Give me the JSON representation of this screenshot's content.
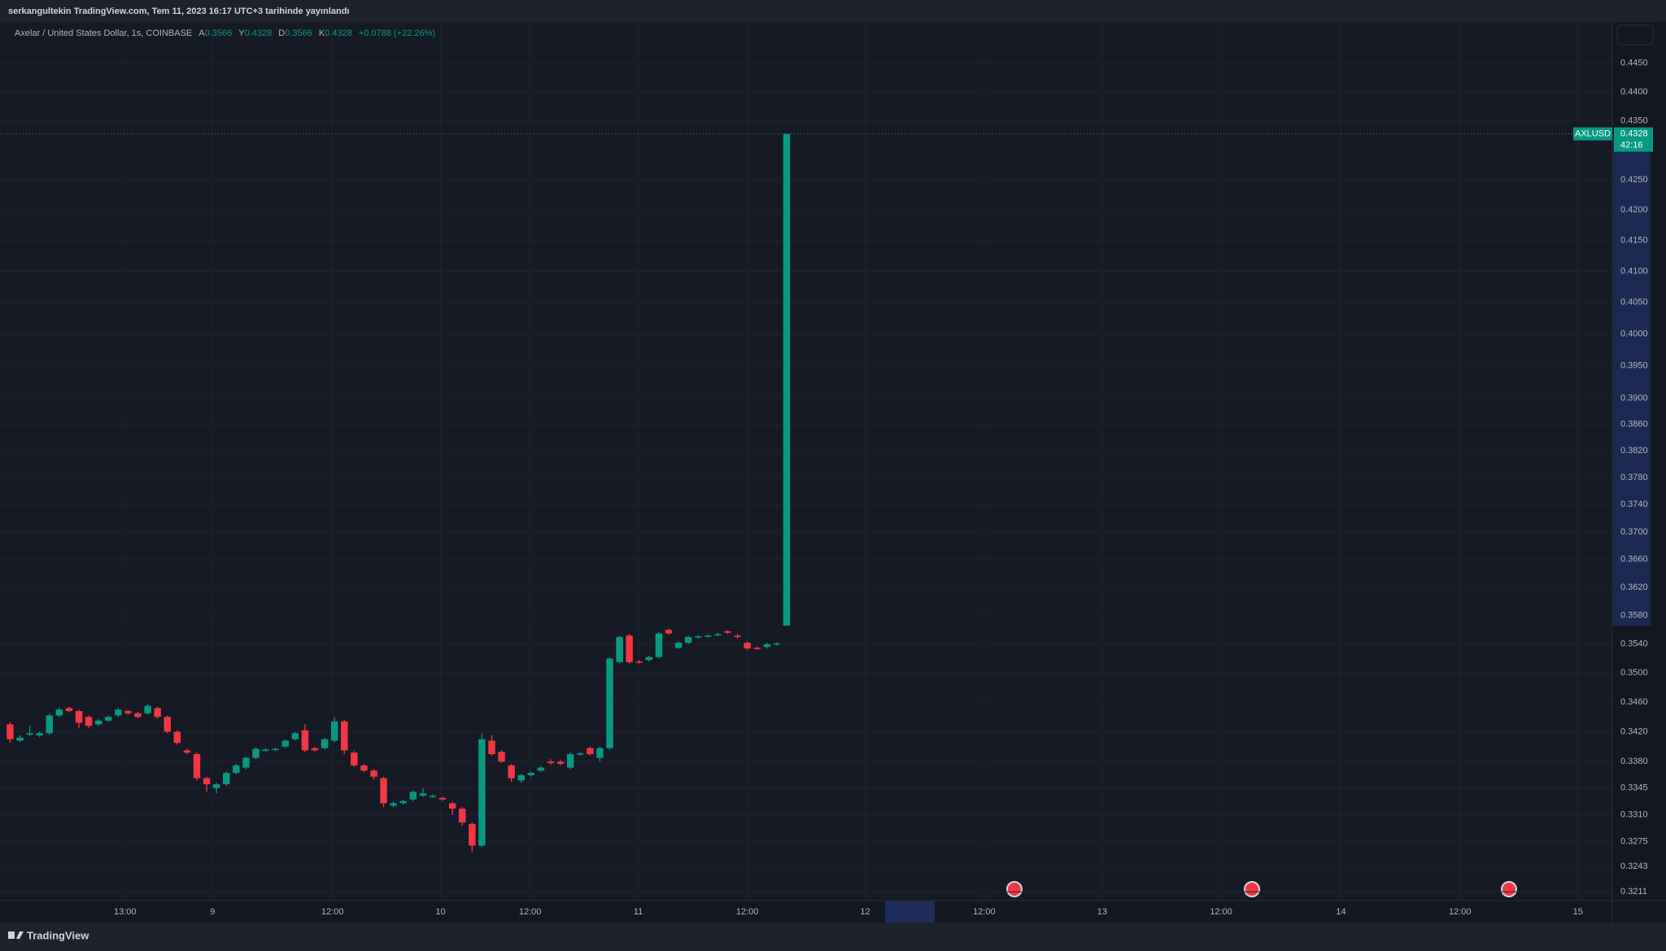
{
  "header": {
    "published": "serkangultekin TradingView.com, Tem 11, 2023 16:17 UTC+3 tarihinde yayınlandı"
  },
  "footer": {
    "brand": "TradingView"
  },
  "chart_data": {
    "type": "candlestick",
    "title": "Axelar / United States Dollar, 1s, COINBASE",
    "ohlc_labels": [
      "A",
      "Y",
      "D",
      "K"
    ],
    "change_label": "+0.0788 (+22.26%)",
    "countdown": "42:16",
    "log_scale": true,
    "grid": true,
    "xlim": [
      -0.2,
      163
    ],
    "xticks": [
      {
        "value": 11.7,
        "label": "13:00"
      },
      {
        "value": 20.6,
        "label": "9"
      },
      {
        "value": 32.8,
        "label": "12:00"
      },
      {
        "value": 43.8,
        "label": "10"
      },
      {
        "value": 52.9,
        "label": "12:00"
      },
      {
        "value": 63.9,
        "label": "11"
      },
      {
        "value": 75.0,
        "label": "12:00"
      },
      {
        "value": 87.0,
        "label": "12"
      },
      {
        "value": 99.1,
        "label": "12:00"
      },
      {
        "value": 111.1,
        "label": "13"
      },
      {
        "value": 123.2,
        "label": "12:00"
      },
      {
        "value": 135.4,
        "label": "14"
      },
      {
        "value": 147.5,
        "label": "12:00"
      },
      {
        "value": 159.5,
        "label": "15"
      }
    ],
    "ylim": [
      0.32,
      0.4523
    ],
    "yticks": [
      {
        "value": 0.445,
        "label": "0.4450"
      },
      {
        "value": 0.44,
        "label": "0.4400"
      },
      {
        "value": 0.435,
        "label": "0.4350"
      },
      {
        "value": 0.425,
        "label": "0.4250"
      },
      {
        "value": 0.42,
        "label": "0.4200"
      },
      {
        "value": 0.415,
        "label": "0.4150"
      },
      {
        "value": 0.41,
        "label": "0.4100"
      },
      {
        "value": 0.405,
        "label": "0.4050"
      },
      {
        "value": 0.4,
        "label": "0.4000"
      },
      {
        "value": 0.395,
        "label": "0.3950"
      },
      {
        "value": 0.39,
        "label": "0.3900"
      },
      {
        "value": 0.386,
        "label": "0.3860"
      },
      {
        "value": 0.382,
        "label": "0.3820"
      },
      {
        "value": 0.378,
        "label": "0.3780"
      },
      {
        "value": 0.374,
        "label": "0.3740"
      },
      {
        "value": 0.37,
        "label": "0.3700"
      },
      {
        "value": 0.366,
        "label": "0.3660"
      },
      {
        "value": 0.362,
        "label": "0.3620"
      },
      {
        "value": 0.358,
        "label": "0.3580"
      },
      {
        "value": 0.354,
        "label": "0.3540"
      },
      {
        "value": 0.35,
        "label": "0.3500"
      },
      {
        "value": 0.346,
        "label": "0.3460"
      },
      {
        "value": 0.342,
        "label": "0.3420"
      },
      {
        "value": 0.338,
        "label": "0.3380"
      },
      0.3345,
      {
        "value": 0.331,
        "label": "0.3310"
      },
      0.3275,
      0.3243,
      0.3211
    ],
    "series": [
      {
        "name": "AXLUSD",
        "up_color": "#089981",
        "down_color": "#f23645",
        "open": [
          0.343,
          0.3408,
          0.3416,
          0.3415,
          0.3418,
          0.3442,
          0.3452,
          0.3448,
          0.344,
          0.343,
          0.3435,
          0.3442,
          0.3448,
          0.3445,
          0.3445,
          0.3452,
          0.344,
          0.342,
          0.3395,
          0.339,
          0.3358,
          0.3345,
          0.335,
          0.3365,
          0.3372,
          0.3385,
          0.3395,
          0.3396,
          0.34,
          0.341,
          0.3422,
          0.3398,
          0.3398,
          0.3408,
          0.3434,
          0.3392,
          0.3375,
          0.3368,
          0.3358,
          0.3322,
          0.3325,
          0.333,
          0.3335,
          0.3334,
          0.3332,
          0.3325,
          0.3318,
          0.3298,
          0.327,
          0.3408,
          0.3393,
          0.3375,
          0.3355,
          0.3362,
          0.3368,
          0.338,
          0.338,
          0.3372,
          0.339,
          0.3398,
          0.3385,
          0.3398,
          0.3515,
          0.3552,
          0.3516,
          0.3518,
          0.3522,
          0.356,
          0.3535,
          0.3542,
          0.355,
          0.3551,
          0.3553,
          0.3558,
          0.3552,
          0.3542,
          0.3535,
          0.3536,
          0.354,
          0.3566
        ],
        "high": [
          0.3433,
          0.3415,
          0.3428,
          0.342,
          0.3444,
          0.3453,
          0.3454,
          0.345,
          0.3442,
          0.3437,
          0.3442,
          0.3452,
          0.345,
          0.3447,
          0.3457,
          0.3454,
          0.3442,
          0.3422,
          0.3397,
          0.3392,
          0.336,
          0.3352,
          0.3367,
          0.3377,
          0.3387,
          0.3399,
          0.3398,
          0.3399,
          0.341,
          0.342,
          0.343,
          0.34,
          0.3412,
          0.344,
          0.3436,
          0.3394,
          0.3377,
          0.337,
          0.336,
          0.3327,
          0.333,
          0.3342,
          0.3345,
          0.3337,
          0.3334,
          0.3327,
          0.332,
          0.33,
          0.3418,
          0.3415,
          0.3395,
          0.3377,
          0.3364,
          0.3367,
          0.3374,
          0.3383,
          0.3382,
          0.3392,
          0.3393,
          0.34,
          0.34,
          0.3522,
          0.3552,
          0.3554,
          0.3518,
          0.3524,
          0.3557,
          0.3562,
          0.3544,
          0.3552,
          0.3553,
          0.3554,
          0.3556,
          0.356,
          0.3554,
          0.3544,
          0.3537,
          0.3542,
          0.3543,
          0.4328
        ],
        "low": [
          0.3405,
          0.3406,
          0.3414,
          0.3413,
          0.3416,
          0.344,
          0.3446,
          0.3425,
          0.3425,
          0.3428,
          0.3433,
          0.344,
          0.3443,
          0.3438,
          0.3443,
          0.3438,
          0.3418,
          0.3403,
          0.339,
          0.3355,
          0.334,
          0.3338,
          0.3348,
          0.3363,
          0.337,
          0.3383,
          0.3393,
          0.3394,
          0.3398,
          0.3408,
          0.3393,
          0.3393,
          0.3396,
          0.3406,
          0.339,
          0.3373,
          0.3366,
          0.3356,
          0.332,
          0.332,
          0.3323,
          0.3328,
          0.3333,
          0.3332,
          0.3328,
          0.331,
          0.3296,
          0.3262,
          0.3268,
          0.3388,
          0.3378,
          0.3353,
          0.3352,
          0.336,
          0.3366,
          0.3376,
          0.3375,
          0.337,
          0.3388,
          0.3388,
          0.338,
          0.3396,
          0.3513,
          0.3513,
          0.3513,
          0.3516,
          0.352,
          0.3553,
          0.3533,
          0.354,
          0.3548,
          0.3549,
          0.3551,
          0.3554,
          0.3548,
          0.3532,
          0.3532,
          0.3534,
          0.3538,
          0.3566
        ],
        "close": [
          0.341,
          0.3412,
          0.3418,
          0.3418,
          0.3442,
          0.345,
          0.3448,
          0.3432,
          0.3428,
          0.3435,
          0.344,
          0.345,
          0.3445,
          0.344,
          0.3455,
          0.344,
          0.342,
          0.3405,
          0.3392,
          0.3358,
          0.335,
          0.335,
          0.3365,
          0.3375,
          0.3385,
          0.3397,
          0.3396,
          0.3397,
          0.3408,
          0.3418,
          0.3395,
          0.3395,
          0.341,
          0.3434,
          0.3395,
          0.3375,
          0.3368,
          0.336,
          0.3325,
          0.3325,
          0.3328,
          0.334,
          0.3338,
          0.3335,
          0.333,
          0.3318,
          0.33,
          0.327,
          0.341,
          0.339,
          0.338,
          0.3358,
          0.3362,
          0.3365,
          0.3372,
          0.3378,
          0.3377,
          0.339,
          0.3391,
          0.339,
          0.3398,
          0.352,
          0.355,
          0.3515,
          0.3515,
          0.3522,
          0.3555,
          0.3555,
          0.3542,
          0.355,
          0.3551,
          0.3552,
          0.3554,
          0.3556,
          0.355,
          0.3534,
          0.3534,
          0.354,
          0.3541,
          0.4328
        ]
      }
    ]
  }
}
